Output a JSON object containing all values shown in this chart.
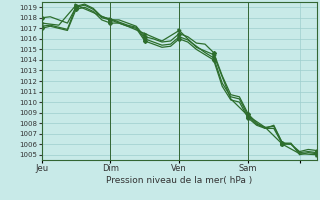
{
  "background_color": "#c8eae8",
  "grid_color": "#9ecece",
  "line_color": "#2d6e2d",
  "xlabel": "Pression niveau de la mer( hPa )",
  "ylim": [
    1004.5,
    1019.5
  ],
  "yticks": [
    1005,
    1006,
    1007,
    1008,
    1009,
    1010,
    1011,
    1012,
    1013,
    1014,
    1015,
    1016,
    1017,
    1018,
    1019
  ],
  "xlim": [
    0,
    96
  ],
  "xtick_positions": [
    0,
    24,
    48,
    72,
    90
  ],
  "xtick_labels": [
    "Jeu",
    "Dim",
    "Ven",
    "Sam",
    ""
  ],
  "vline_positions": [
    0,
    24,
    48,
    72
  ],
  "series": [
    {
      "x": [
        0,
        3,
        6,
        9,
        12,
        15,
        18,
        21,
        24,
        27,
        30,
        33,
        36,
        39,
        42,
        45,
        48,
        51,
        54,
        57,
        60,
        63,
        66,
        69,
        72,
        75,
        78,
        81,
        84,
        87,
        90,
        93,
        96
      ],
      "y": [
        1018.0,
        1018.1,
        1017.8,
        1017.5,
        1019.0,
        1019.2,
        1018.8,
        1018.0,
        1017.8,
        1017.8,
        1017.5,
        1017.2,
        1016.2,
        1016.0,
        1015.7,
        1015.8,
        1016.5,
        1016.2,
        1015.6,
        1015.5,
        1014.7,
        1012.5,
        1010.7,
        1010.5,
        1008.9,
        1008.0,
        1007.5,
        1007.8,
        1006.1,
        1006.1,
        1005.0,
        1005.2,
        1005.1
      ]
    },
    {
      "x": [
        0,
        3,
        6,
        9,
        12,
        15,
        18,
        21,
        24,
        27,
        30,
        33,
        36,
        39,
        42,
        45,
        48,
        51,
        54,
        57,
        60,
        63,
        66,
        69,
        72,
        75,
        78,
        81,
        84,
        87,
        90,
        93,
        96
      ],
      "y": [
        1017.0,
        1017.2,
        1017.0,
        1016.8,
        1018.8,
        1019.0,
        1018.6,
        1017.8,
        1017.5,
        1017.5,
        1017.2,
        1017.0,
        1015.8,
        1015.5,
        1015.2,
        1015.3,
        1016.0,
        1015.7,
        1015.0,
        1014.5,
        1014.0,
        1011.5,
        1010.2,
        1010.0,
        1008.5,
        1007.8,
        1007.5,
        1007.5,
        1006.0,
        1006.0,
        1005.3,
        1005.5,
        1005.4
      ]
    },
    {
      "x": [
        0,
        3,
        6,
        9,
        12,
        15,
        18,
        21,
        24,
        27,
        30,
        33,
        36,
        39,
        42,
        45,
        48,
        51,
        54,
        57,
        60,
        63,
        66,
        69,
        72,
        75,
        78,
        81,
        84,
        87,
        90,
        93,
        96
      ],
      "y": [
        1017.2,
        1017.3,
        1017.1,
        1016.9,
        1019.1,
        1019.3,
        1018.9,
        1018.1,
        1017.9,
        1017.6,
        1017.3,
        1017.1,
        1016.0,
        1015.7,
        1015.4,
        1015.5,
        1016.2,
        1015.9,
        1015.3,
        1014.7,
        1014.2,
        1011.8,
        1010.5,
        1010.3,
        1008.7,
        1007.9,
        1007.6,
        1007.7,
        1006.1,
        1006.0,
        1005.2,
        1005.3,
        1005.2
      ]
    },
    {
      "x": [
        0,
        6,
        12,
        18,
        24,
        30,
        36,
        42,
        48,
        54,
        60,
        66,
        72,
        78,
        84,
        90,
        96
      ],
      "y": [
        1017.5,
        1017.3,
        1019.2,
        1018.5,
        1017.8,
        1017.2,
        1016.5,
        1015.8,
        1016.8,
        1015.2,
        1014.5,
        1010.3,
        1008.7,
        1007.6,
        1006.0,
        1005.1,
        1005.0
      ]
    }
  ]
}
